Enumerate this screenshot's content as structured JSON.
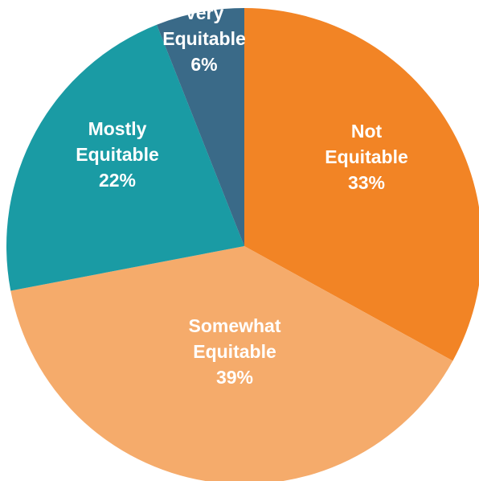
{
  "chart_data": {
    "type": "pie",
    "title": "",
    "start_angle_deg": 0,
    "direction": "clockwise",
    "slices": [
      {
        "label_lines": [
          "Not",
          "Equitable"
        ],
        "percent_label": "33%",
        "value": 33,
        "color": "#F28425"
      },
      {
        "label_lines": [
          "Somewhat",
          "Equitable"
        ],
        "percent_label": "39%",
        "value": 39,
        "color": "#F5AB6B"
      },
      {
        "label_lines": [
          "Mostly",
          "Equitable"
        ],
        "percent_label": "22%",
        "value": 22,
        "color": "#1A9BA4"
      },
      {
        "label_lines": [
          "Very",
          "Equitable"
        ],
        "percent_label": "6%",
        "value": 6,
        "color": "#3A6A88"
      }
    ]
  }
}
